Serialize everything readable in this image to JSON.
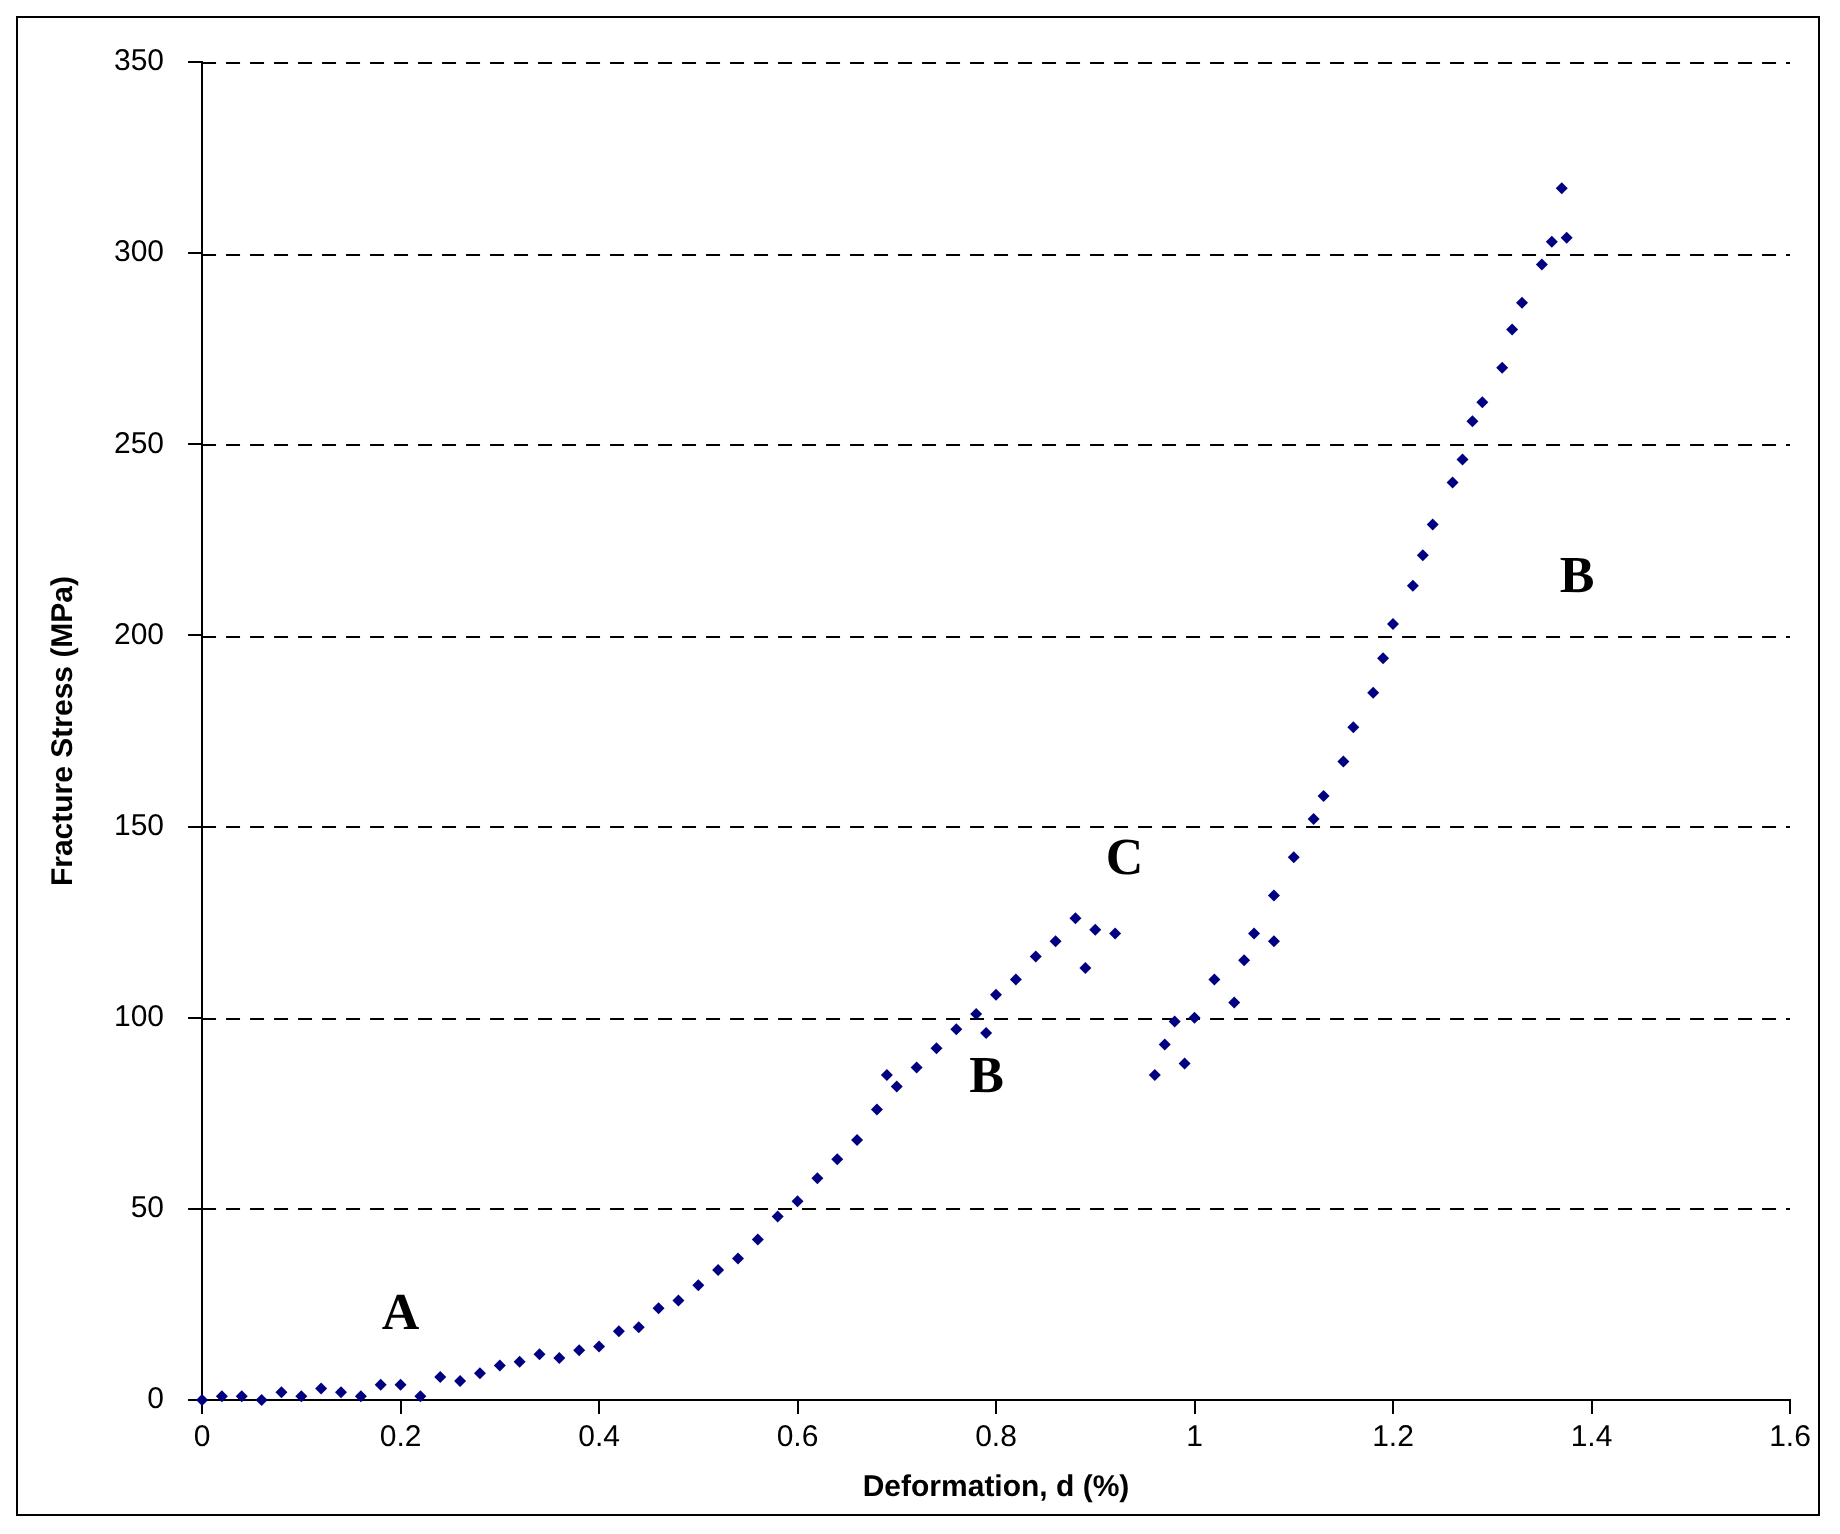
{
  "chart_data": {
    "type": "scatter",
    "xlabel": "Deformation, d (%)",
    "ylabel": "Fracture Stress (MPa)",
    "xlim": [
      0,
      1.6
    ],
    "xticks": [
      0,
      0.2,
      0.4,
      0.6,
      0.8,
      1,
      1.2,
      1.4,
      1.6
    ],
    "ylim": [
      0,
      350
    ],
    "yticks": [
      0,
      50,
      100,
      150,
      200,
      250,
      300,
      350
    ],
    "grid": "y",
    "legend": false,
    "marker": "diamond",
    "series": [
      {
        "color": "#000080",
        "x": [
          0,
          0.02,
          0.04,
          0.06,
          0.08,
          0.1,
          0.12,
          0.14,
          0.16,
          0.18,
          0.2,
          0.22,
          0.24,
          0.26,
          0.28,
          0.3,
          0.32,
          0.34,
          0.36,
          0.38,
          0.4,
          0.42,
          0.44,
          0.46,
          0.48,
          0.5,
          0.52,
          0.54,
          0.56,
          0.58,
          0.6,
          0.62,
          0.64,
          0.66,
          0.68,
          0.69,
          0.7,
          0.72,
          0.74,
          0.76,
          0.78,
          0.79,
          0.8,
          0.82,
          0.84,
          0.86,
          0.88,
          0.89,
          0.9,
          0.92,
          0.96,
          0.97,
          0.98,
          0.99,
          1.0,
          1.02,
          1.04,
          1.05,
          1.06,
          1.08,
          1.08,
          1.1,
          1.12,
          1.13,
          1.15,
          1.16,
          1.18,
          1.19,
          1.2,
          1.22,
          1.23,
          1.24,
          1.26,
          1.27,
          1.28,
          1.29,
          1.31,
          1.32,
          1.33,
          1.35,
          1.36,
          1.37,
          1.375
        ],
        "values": [
          0,
          1,
          1,
          0,
          2,
          1,
          3,
          2,
          1,
          4,
          4,
          1,
          6,
          5,
          7,
          9,
          10,
          12,
          11,
          13,
          14,
          18,
          19,
          24,
          26,
          30,
          34,
          37,
          42,
          48,
          52,
          58,
          63,
          68,
          76,
          85,
          82,
          87,
          92,
          97,
          101,
          96,
          106,
          110,
          116,
          120,
          126,
          113,
          123,
          122,
          85,
          93,
          99,
          88,
          100,
          110,
          104,
          115,
          122,
          120,
          132,
          142,
          152,
          158,
          167,
          176,
          185,
          194,
          203,
          213,
          221,
          229,
          240,
          246,
          256,
          261,
          270,
          280,
          287,
          297,
          303,
          317,
          304
        ]
      }
    ],
    "annotations": [
      "A",
      "B",
      "C",
      "B"
    ]
  }
}
